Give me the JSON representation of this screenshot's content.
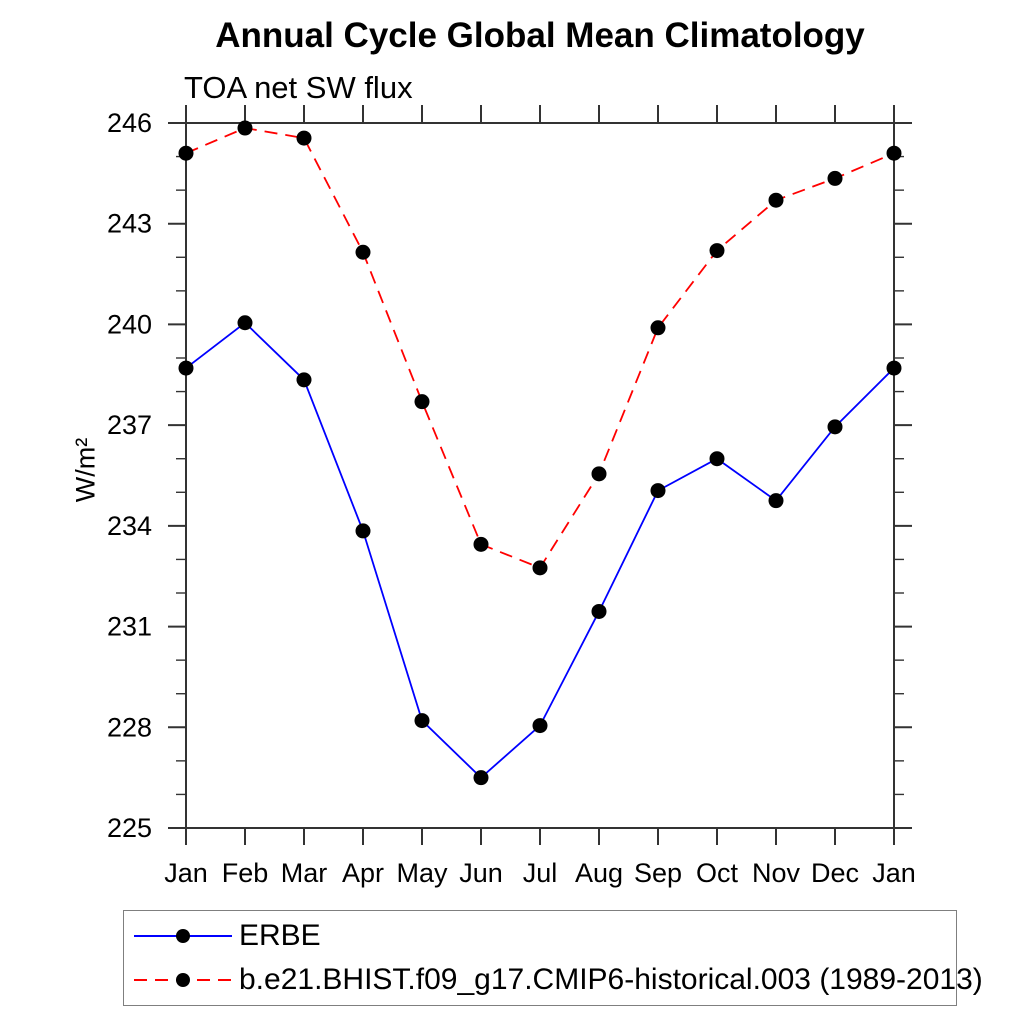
{
  "title": "Annual Cycle Global Mean Climatology",
  "subtitle": "TOA net SW flux",
  "ylabel": "W/m²",
  "chart_data": {
    "type": "line",
    "title": "Annual Cycle Global Mean Climatology",
    "subtitle": "TOA net SW flux",
    "xlabel": "",
    "ylabel": "W/m²",
    "categories": [
      "Jan",
      "Feb",
      "Mar",
      "Apr",
      "May",
      "Jun",
      "Jul",
      "Aug",
      "Sep",
      "Oct",
      "Nov",
      "Dec",
      "Jan"
    ],
    "ylim": [
      225,
      246
    ],
    "ytick_major": [
      225,
      228,
      231,
      234,
      237,
      240,
      243,
      246
    ],
    "ytick_minor_step": 1,
    "grid": false,
    "legend_position": "bottom",
    "marker": {
      "shape": "circle",
      "color": "#000000",
      "radius": 7.5
    },
    "axis_color": "#333333",
    "series": [
      {
        "name": "ERBE",
        "color": "#0000ff",
        "dash": "solid",
        "values": [
          238.7,
          240.05,
          238.35,
          233.85,
          228.2,
          226.5,
          228.05,
          231.45,
          235.05,
          236.0,
          234.75,
          236.95,
          238.7
        ]
      },
      {
        "name": "b.e21.BHIST.f09_g17.CMIP6-historical.003 (1989-2013)",
        "color": "#ff0000",
        "dash": "dashed",
        "values": [
          245.1,
          245.85,
          245.55,
          242.15,
          237.7,
          233.45,
          232.75,
          235.55,
          239.9,
          242.2,
          243.7,
          244.35,
          245.1
        ]
      }
    ]
  }
}
